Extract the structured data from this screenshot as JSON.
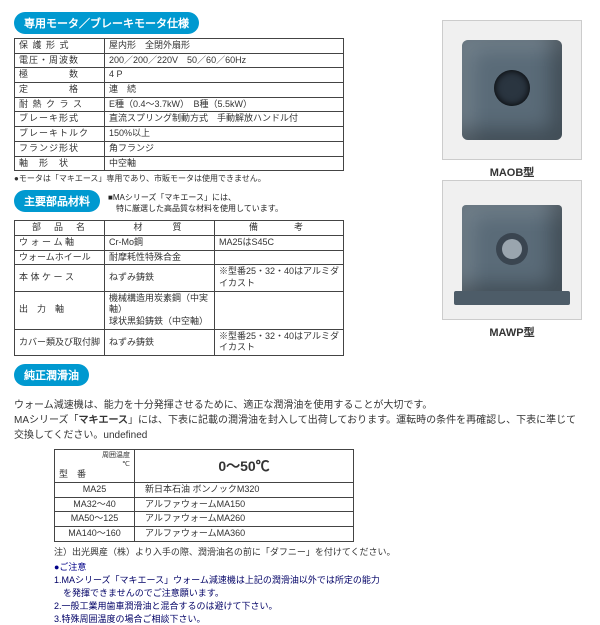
{
  "sections": {
    "motor_spec": {
      "title": "専用モータ／ブレーキモータ仕様"
    },
    "materials": {
      "title": "主要部品材料",
      "note": "■MAシリーズ「マキエース」には、\n　特に厳選した高品質な材料を使用しています。"
    },
    "lubricant": {
      "title": "純正潤滑油"
    }
  },
  "spec_rows": [
    {
      "label": "保 護 形 式",
      "value": "屋内形　全閉外扇形"
    },
    {
      "label": "電圧・周波数",
      "value": "200／200／220V　50／60／60Hz"
    },
    {
      "label": "極　　　　数",
      "value": "4 P"
    },
    {
      "label": "定　　　　格",
      "value": "連　続"
    },
    {
      "label": "耐 熱 ク ラ ス",
      "value": "E種（0.4～3.7kW）　B種（5.5kW）"
    },
    {
      "label": "ブレーキ形式",
      "value": "直流スプリング制動方式　手動解放ハンドル付"
    },
    {
      "label": "ブレーキトルク",
      "value": "150%以上"
    },
    {
      "label": "フランジ形状",
      "value": "角フランジ"
    },
    {
      "label": "軸　形　状",
      "value": "中空軸"
    }
  ],
  "spec_footnote": "●モータは「マキエース」専用であり、市販モータは使用できません。",
  "materials_headers": [
    "部　品　名",
    "材　　質",
    "備　　考"
  ],
  "materials_rows": [
    {
      "name": "ウ ォ ー ム 軸",
      "material": "Cr-Mo鋼",
      "remark": "MA25はS45C"
    },
    {
      "name": "ウォームホイール",
      "material": "耐摩耗性特殊合金",
      "remark": ""
    },
    {
      "name": "本 体 ケ ー ス",
      "material": "ねずみ鋳鉄",
      "remark": "※型番25・32・40はアルミダイカスト"
    },
    {
      "name": "出　力　軸",
      "material": "機械構造用炭素鋼（中実軸）\n球状黒鉛鋳鉄（中空軸）",
      "remark": ""
    },
    {
      "name": "カバー類及び取付脚",
      "material": "ねずみ鋳鉄",
      "remark": "※型番25・32・40はアルミダイカスト"
    }
  ],
  "lubricant_text": "ウォーム減速機は、能力を十分発揮させるために、適正な潤滑油を使用することが大切です。\nMAシリーズ「マキエース」には、下表に記載の潤滑油を封入して出荷しております。運転時の条件を再確認し、下表に準じて交換してください。",
  "oil_headers": {
    "model": "型　番",
    "temp_label": "周囲温度\n℃",
    "temp_range": "0～50℃"
  },
  "oil_rows": [
    {
      "model": "MA25",
      "oil": "新日本石油 ボンノックM320"
    },
    {
      "model": "MA32～40",
      "oil": "アルファウォームMA150"
    },
    {
      "model": "MA50～125",
      "oil": "アルファウォームMA260"
    },
    {
      "model": "MA140～160",
      "oil": "アルファウォームMA360"
    }
  ],
  "annotations": {
    "note1": "注）出光興産（株）より入手の際、潤滑油名の前に「ダフニー」を付けてください。",
    "caution_head": "●ご注意",
    "c1": "1.MAシリーズ「マキエース」ウォーム減速機は上記の潤滑油以外では所定の能力\n　を発揮できませんのでご注意願います。",
    "c2": "2.一般工業用歯車潤滑油と混合するのは避けて下さい。",
    "c3": "3.特殊周囲温度の場合ご相談下さい。"
  },
  "products": {
    "maob": "MAOB型",
    "mawp": "MAWP型"
  }
}
